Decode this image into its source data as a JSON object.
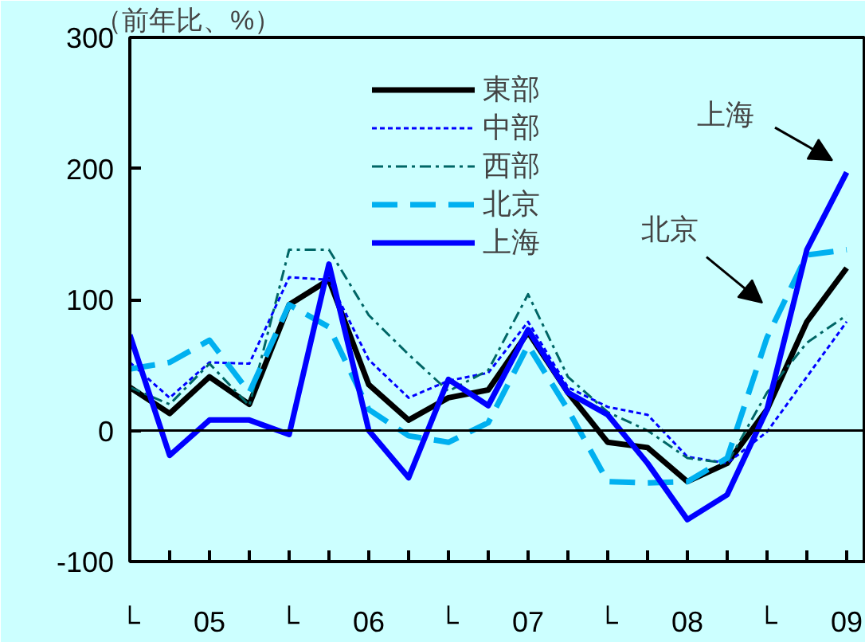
{
  "chart_data": {
    "type": "line",
    "ylabel": "（前年比、%）",
    "categories": [
      "└",
      null,
      "05",
      null,
      "└",
      null,
      "06",
      null,
      "└",
      null,
      "07",
      null,
      "└",
      null,
      "08",
      null,
      "└",
      null,
      "09"
    ],
    "ylim": [
      -100,
      300
    ],
    "yticks": [
      -100,
      0,
      100,
      200,
      300
    ],
    "grid": false,
    "legend": "top",
    "series": [
      {
        "name": "東部",
        "color": "#000000",
        "line_style": "solid",
        "values": [
          33,
          13,
          41,
          20,
          96,
          115,
          35,
          8,
          25,
          31,
          75,
          29,
          -9,
          -13,
          -39,
          -25,
          16,
          83,
          124
        ]
      },
      {
        "name": "中部",
        "color": "#0000ff",
        "line_style": "dotted",
        "values": [
          52,
          25,
          52,
          51,
          117,
          115,
          54,
          25,
          38,
          44,
          83,
          33,
          18,
          12,
          -20,
          -25,
          -1,
          41,
          83
        ]
      },
      {
        "name": "西部",
        "color": "#006666",
        "line_style": "dashdot",
        "values": [
          33,
          20,
          51,
          19,
          138,
          138,
          88,
          58,
          30,
          46,
          104,
          41,
          14,
          0,
          -21,
          -25,
          29,
          67,
          88
        ]
      },
      {
        "name": "北京",
        "color": "#00b0f0",
        "line_style": "dashed",
        "values": [
          47,
          52,
          69,
          29,
          96,
          79,
          16,
          -4,
          -9,
          6,
          65,
          16,
          -39,
          -40,
          -39,
          -21,
          71,
          134,
          138
        ]
      },
      {
        "name": "上海",
        "color": "#0000ff",
        "line_style": "solid",
        "values": [
          73,
          -19,
          8,
          8,
          -3,
          127,
          0,
          -36,
          39,
          19,
          77,
          29,
          12,
          -25,
          -68,
          -49,
          16,
          138,
          197
        ]
      }
    ],
    "ref_lines": [
      {
        "axis": "y",
        "value": 0,
        "color": "#000000"
      }
    ],
    "annotations": [
      "上海",
      "北京"
    ]
  }
}
